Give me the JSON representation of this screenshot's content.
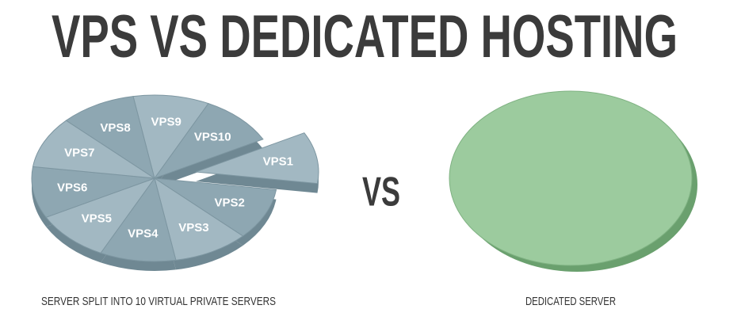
{
  "title": "VPS VS DEDICATED HOSTING",
  "left": {
    "slices": [
      "VPS1",
      "VPS2",
      "VPS3",
      "VPS4",
      "VPS5",
      "VPS6",
      "VPS7",
      "VPS8",
      "VPS9",
      "VPS10"
    ],
    "caption": "SERVER SPLIT INTO 10 VIRTUAL PRIVATE SERVERS"
  },
  "vs": "VS",
  "right": {
    "caption": "DEDICATED SERVER"
  }
}
